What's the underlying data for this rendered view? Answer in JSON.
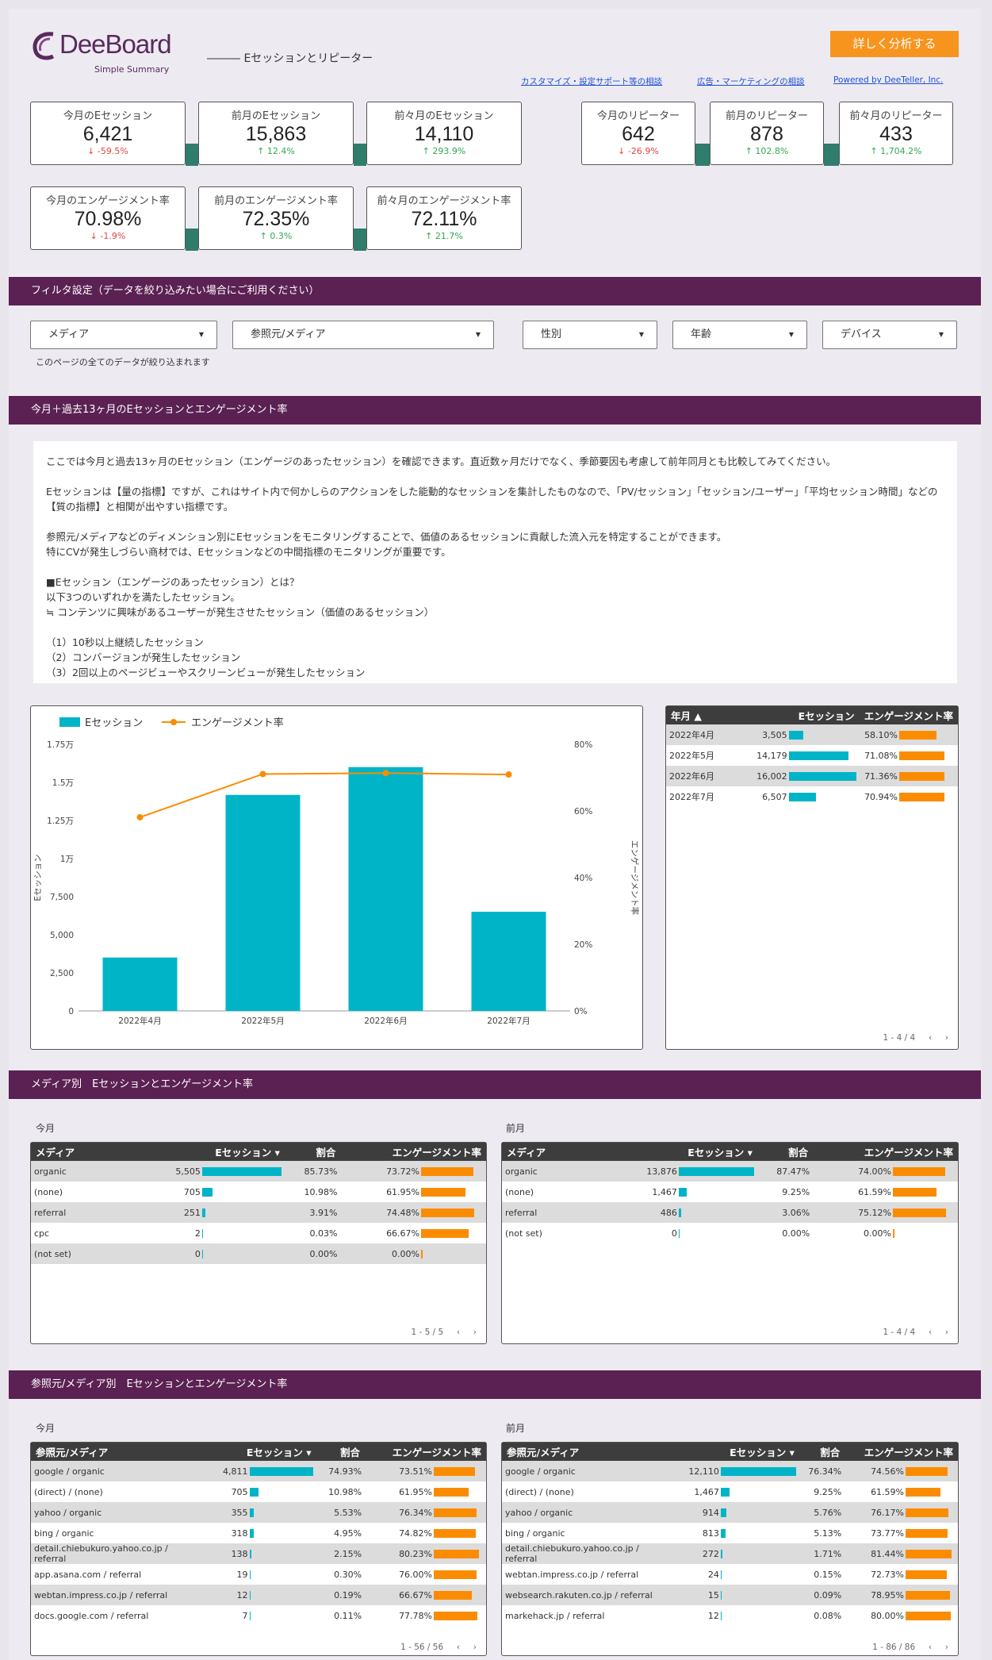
{
  "header": {
    "logo": "DeeBoard",
    "logo_sub": "Simple Summary",
    "section_title": "―――  Eセッションとリピーター",
    "cta": "詳しく分析する",
    "links": [
      "カスタマイズ・設定サポート等の相談",
      "広告・マーケティングの相談",
      "Powered by DeeTeller, Inc."
    ]
  },
  "kpis": [
    {
      "label": "今月のEセッション",
      "value": "6,421",
      "delta": "-59.5%",
      "dir": "down"
    },
    {
      "label": "前月のEセッション",
      "value": "15,863",
      "delta": "12.4%",
      "dir": "up"
    },
    {
      "label": "前々月のEセッション",
      "value": "14,110",
      "delta": "293.9%",
      "dir": "up"
    },
    {
      "label": "今月のリピーター",
      "value": "642",
      "delta": "-26.9%",
      "dir": "down"
    },
    {
      "label": "前月のリピーター",
      "value": "878",
      "delta": "102.8%",
      "dir": "up"
    },
    {
      "label": "前々月のリピーター",
      "value": "433",
      "delta": "1,704.2%",
      "dir": "up"
    },
    {
      "label": "今月のエンゲージメント率",
      "value": "70.98%",
      "delta": "-1.9%",
      "dir": "down"
    },
    {
      "label": "前月のエンゲージメント率",
      "value": "72.35%",
      "delta": "0.3%",
      "dir": "up"
    },
    {
      "label": "前々月のエンゲージメント率",
      "value": "72.11%",
      "delta": "21.7%",
      "dir": "up"
    }
  ],
  "filter": {
    "band": "フィルタ設定（データを絞り込みたい場合にご利用ください）",
    "dropdowns": [
      "メディア",
      "参照元/メディア",
      "性別",
      "年齢",
      "デバイス"
    ],
    "note": "このページの全てのデータが絞り込まれます"
  },
  "trend": {
    "band": "今月＋過去13ヶ月のEセッションとエンゲージメント率",
    "text": [
      "ここでは今月と過去13ヶ月のEセッション（エンゲージのあったセッション）を確認できます。直近数ヶ月だけでなく、季節要因も考慮して前年同月とも比較してみてください。",
      "",
      "Eセッションは【量の指標】ですが、これはサイト内で何かしらのアクションをした能動的なセッションを集計したものなので、「PV/セッション」「セッション/ユーザー」「平均セッション時間」などの",
      "【質の指標】と相関が出やすい指標です。",
      "",
      "参照元/メディアなどのディメンション別にEセッションをモニタリングすることで、価値のあるセッションに貢献した流入元を特定することができます。",
      "特にCVが発生しづらい商材では、Eセッションなどの中間指標のモニタリングが重要です。",
      "",
      "■Eセッション（エンゲージのあったセッション）とは？",
      "以下3つのいずれかを満たしたセッション。",
      "≒ コンテンツに興味があるユーザーが発生させたセッション（価値のあるセッション）",
      "",
      "（1）10秒以上継続したセッション",
      "（2）コンバージョンが発生したセッション",
      "（3）2回以上のページビューやスクリーンビューが発生したセッション"
    ]
  },
  "chart_data": {
    "type": "bar",
    "categories": [
      "2022年4月",
      "2022年5月",
      "2022年6月",
      "2022年7月"
    ],
    "series": [
      {
        "name": "Eセッション",
        "values": [
          3505,
          14179,
          16002,
          6507
        ]
      },
      {
        "name": "エンゲージメント率",
        "values": [
          58.1,
          71.08,
          71.36,
          70.94
        ]
      }
    ],
    "ylabel": "Eセッション",
    "y2label": "エンゲージメント率",
    "y_ticks": [
      "0",
      "2,500",
      "5,000",
      "7,500",
      "1万",
      "1.25万",
      "1.5万",
      "1.75万"
    ],
    "ylim": [
      0,
      17500
    ],
    "y2_ticks": [
      "0%",
      "20%",
      "40%",
      "60%",
      "80%"
    ],
    "y2lim": [
      0,
      80
    ],
    "legend": "top-left",
    "colors": {
      "bar": "#00b4c8",
      "line": "#fb8c00"
    }
  },
  "monthly_table": {
    "headers": [
      "年月 ▲",
      "Eセッション",
      "エンゲージメント率"
    ],
    "rows": [
      [
        "2022年4月",
        "3,505",
        "58.10%"
      ],
      [
        "2022年5月",
        "14,179",
        "71.08%"
      ],
      [
        "2022年6月",
        "16,002",
        "71.36%"
      ],
      [
        "2022年7月",
        "6,507",
        "70.94%"
      ]
    ],
    "sess": [
      3505,
      14179,
      16002,
      6507
    ],
    "rate": [
      58.1,
      71.08,
      71.36,
      70.94
    ],
    "pager": "1 - 4 / 4"
  },
  "media": {
    "band": "メディア別　Eセッションとエンゲージメント率",
    "this_label": "今月",
    "prev_label": "前月",
    "headers": [
      "メディア",
      "Eセッション ▾",
      "割合",
      "エンゲージメント率"
    ],
    "this_rows": [
      [
        "organic",
        "5,505",
        "85.73%",
        "73.72%"
      ],
      [
        "(none)",
        "705",
        "10.98%",
        "61.95%"
      ],
      [
        "referral",
        "251",
        "3.91%",
        "74.48%"
      ],
      [
        "cpc",
        "2",
        "0.03%",
        "66.67%"
      ],
      [
        "(not set)",
        "0",
        "0.00%",
        "0.00%"
      ]
    ],
    "this_sess": [
      5505,
      705,
      251,
      2,
      0
    ],
    "this_rate": [
      73.72,
      61.95,
      74.48,
      66.67,
      0
    ],
    "prev_rows": [
      [
        "organic",
        "13,876",
        "87.47%",
        "74.00%"
      ],
      [
        "(none)",
        "1,467",
        "9.25%",
        "61.59%"
      ],
      [
        "referral",
        "486",
        "3.06%",
        "75.12%"
      ],
      [
        "(not set)",
        "0",
        "0.00%",
        "0.00%"
      ]
    ],
    "prev_sess": [
      13876,
      1467,
      486,
      0
    ],
    "prev_rate": [
      74.0,
      61.59,
      75.12,
      0
    ],
    "this_pager": "1 - 5 / 5",
    "prev_pager": "1 - 4 / 4"
  },
  "source": {
    "band": "参照元/メディア別　Eセッションとエンゲージメント率",
    "this_label": "今月",
    "prev_label": "前月",
    "headers": [
      "参照元/メディア",
      "Eセッション ▾",
      "割合",
      "エンゲージメント率"
    ],
    "this_rows": [
      [
        "google / organic",
        "4,811",
        "74.93%",
        "73.51%"
      ],
      [
        "(direct) / (none)",
        "705",
        "10.98%",
        "61.95%"
      ],
      [
        "yahoo / organic",
        "355",
        "5.53%",
        "76.34%"
      ],
      [
        "bing / organic",
        "318",
        "4.95%",
        "74.82%"
      ],
      [
        "detail.chiebukuro.yahoo.co.jp / referral",
        "138",
        "2.15%",
        "80.23%"
      ],
      [
        "app.asana.com / referral",
        "19",
        "0.30%",
        "76.00%"
      ],
      [
        "webtan.impress.co.jp / referral",
        "12",
        "0.19%",
        "66.67%"
      ],
      [
        "docs.google.com / referral",
        "7",
        "0.11%",
        "77.78%"
      ]
    ],
    "this_sess": [
      4811,
      705,
      355,
      318,
      138,
      19,
      12,
      7
    ],
    "this_rate": [
      73.51,
      61.95,
      76.34,
      74.82,
      80.23,
      76.0,
      66.67,
      77.78
    ],
    "prev_rows": [
      [
        "google / organic",
        "12,110",
        "76.34%",
        "74.56%"
      ],
      [
        "(direct) / (none)",
        "1,467",
        "9.25%",
        "61.59%"
      ],
      [
        "yahoo / organic",
        "914",
        "5.76%",
        "76.17%"
      ],
      [
        "bing / organic",
        "813",
        "5.13%",
        "73.77%"
      ],
      [
        "detail.chiebukuro.yahoo.co.jp / referral",
        "272",
        "1.71%",
        "81.44%"
      ],
      [
        "webtan.impress.co.jp / referral",
        "24",
        "0.15%",
        "72.73%"
      ],
      [
        "websearch.rakuten.co.jp / referral",
        "15",
        "0.09%",
        "78.95%"
      ],
      [
        "markehack.jp / referral",
        "12",
        "0.08%",
        "80.00%"
      ]
    ],
    "prev_sess": [
      12110,
      1467,
      914,
      813,
      272,
      24,
      15,
      12
    ],
    "prev_rate": [
      74.56,
      61.59,
      76.17,
      73.77,
      81.44,
      72.73,
      78.95,
      80.0
    ],
    "this_pager": "1 - 56 / 56",
    "prev_pager": "1 - 86 / 86"
  }
}
